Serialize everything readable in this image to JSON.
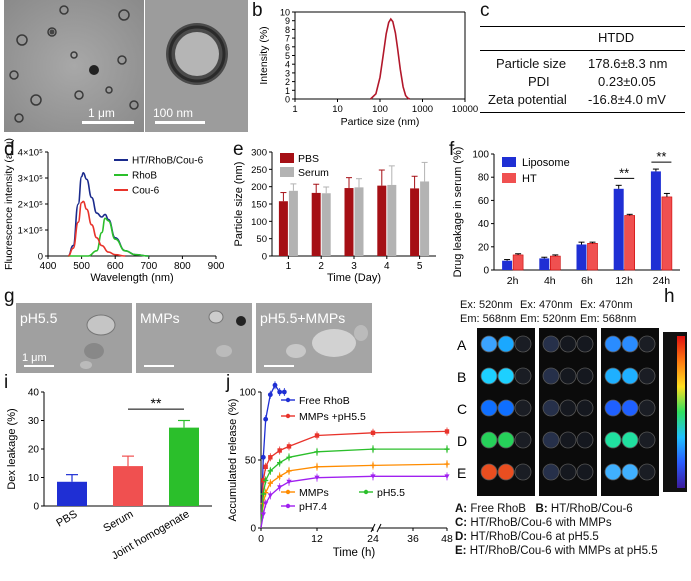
{
  "figure": {
    "labels": {
      "a": "a",
      "b": "b",
      "c": "c",
      "d": "d",
      "e": "e",
      "f": "f",
      "g": "g",
      "h": "h",
      "i": "i",
      "j": "j"
    }
  },
  "panel_a": {
    "scale_left": "1 μm",
    "scale_right": "100 nm"
  },
  "panel_c": {
    "header": "HTDD",
    "rows": [
      {
        "name": "Particle size",
        "value": "178.6±8.3 nm"
      },
      {
        "name": "PDI",
        "value": "0.23±0.05"
      },
      {
        "name": "Zeta potential",
        "value": "-16.8±4.0 mV"
      }
    ]
  },
  "panel_g": {
    "images": [
      "pH5.5",
      "MMPs",
      "pH5.5+MMPs"
    ],
    "scale": "1 μm"
  },
  "panel_h": {
    "columns": [
      {
        "ex": "Ex: 520nm",
        "em": "Em: 568nm"
      },
      {
        "ex": "Ex: 470nm",
        "em": "Em: 520nm"
      },
      {
        "ex": "Ex: 470nm",
        "em": "Em: 568nm"
      }
    ],
    "rows": [
      "A",
      "B",
      "C",
      "D",
      "E"
    ],
    "legend": [
      {
        "k": "A:",
        "v": "Free RhoB"
      },
      {
        "k": "B:",
        "v": "HT/RhoB/Cou-6"
      },
      {
        "k": "C:",
        "v": "HT/RhoB/Cou-6 with MMPs"
      },
      {
        "k": "D:",
        "v": "HT/RhoB/Cou-6 at pH5.5"
      },
      {
        "k": "E:",
        "v": "HT/RhoB/Cou-6 with MMPs at pH5.5"
      }
    ]
  },
  "chart_data": [
    {
      "id": "b",
      "type": "line",
      "xlabel": "Partice size (nm)",
      "ylabel": "Intensity (%)",
      "xscale": "log",
      "xlim": [
        1,
        10000
      ],
      "ylim": [
        0,
        10
      ],
      "xticks": [
        "1",
        "10",
        "100",
        "1000",
        "10000"
      ],
      "yticks": [
        "0",
        "1",
        "2",
        "3",
        "4",
        "5",
        "6",
        "7",
        "8",
        "9",
        "10"
      ],
      "x": [
        60,
        80,
        100,
        120,
        140,
        160,
        180,
        200,
        230,
        260,
        300,
        350,
        400,
        450,
        500
      ],
      "y": [
        0,
        0.6,
        2.5,
        5.2,
        7.5,
        8.8,
        9.2,
        8.9,
        7.6,
        5.8,
        3.4,
        1.4,
        0.4,
        0.1,
        0
      ],
      "color": "#b2182b"
    },
    {
      "id": "d",
      "type": "line",
      "xlabel": "Wavelength (nm)",
      "ylabel": "Fluorescence intensity (a. u)",
      "xlim": [
        400,
        900
      ],
      "ylim": [
        0,
        400000
      ],
      "xticks": [
        "400",
        "500",
        "600",
        "700",
        "800",
        "900"
      ],
      "yticks": [
        "0",
        "1×10⁵",
        "2×10⁵",
        "3×10⁵",
        "4×10⁵"
      ],
      "series": [
        {
          "name": "HT/RhoB/Cou-6",
          "color": "#1a2a8c",
          "x": [
            460,
            475,
            490,
            500,
            505,
            515,
            530,
            545,
            560,
            570,
            580,
            600,
            630,
            660,
            700
          ],
          "y": [
            0,
            40000,
            200000,
            305000,
            320000,
            295000,
            225000,
            165000,
            150000,
            160000,
            140000,
            70000,
            20000,
            5000,
            0
          ]
        },
        {
          "name": "RhoB",
          "color": "#2bbf2b",
          "x": [
            460,
            520,
            545,
            560,
            570,
            580,
            600,
            630,
            660,
            700
          ],
          "y": [
            0,
            0,
            20000,
            90000,
            145000,
            135000,
            65000,
            20000,
            5000,
            0
          ]
        },
        {
          "name": "Cou-6",
          "color": "#e8332b",
          "x": [
            460,
            475,
            490,
            500,
            505,
            515,
            530,
            545,
            560,
            580,
            600,
            630
          ],
          "y": [
            0,
            30000,
            130000,
            205000,
            210000,
            180000,
            120000,
            70000,
            40000,
            15000,
            5000,
            0
          ]
        }
      ]
    },
    {
      "id": "e",
      "type": "bar",
      "xlabel": "Time (Day)",
      "ylabel": "Particle size (nm)",
      "categories": [
        "1",
        "2",
        "3",
        "4",
        "5"
      ],
      "ylim": [
        0,
        300
      ],
      "yticks": [
        "0",
        "50",
        "100",
        "150",
        "200",
        "250",
        "300"
      ],
      "series": [
        {
          "name": "PBS",
          "color": "#a50f15",
          "values": [
            158,
            182,
            196,
            203,
            195
          ],
          "errors": [
            25,
            25,
            30,
            45,
            35
          ]
        },
        {
          "name": "Serum",
          "color": "#b3b3b3",
          "values": [
            188,
            181,
            198,
            205,
            215
          ],
          "errors": [
            20,
            18,
            25,
            55,
            55
          ]
        }
      ]
    },
    {
      "id": "f",
      "type": "bar",
      "xlabel": "",
      "ylabel": "Drug leakage in serum (%)",
      "categories": [
        "2h",
        "4h",
        "6h",
        "12h",
        "24h"
      ],
      "ylim": [
        0,
        100
      ],
      "yticks": [
        "0",
        "20",
        "40",
        "60",
        "80",
        "100"
      ],
      "series": [
        {
          "name": "Liposome",
          "color": "#1f2fd4",
          "values": [
            8,
            10,
            22,
            70,
            85
          ],
          "errors": [
            1,
            1,
            2,
            3,
            2
          ]
        },
        {
          "name": "HT",
          "color": "#f05050",
          "values": [
            13,
            12,
            23,
            47,
            63
          ],
          "errors": [
            1,
            1,
            1,
            1,
            3
          ]
        }
      ],
      "annotations": [
        {
          "at": "12h",
          "text": "**"
        },
        {
          "at": "24h",
          "text": "**"
        }
      ]
    },
    {
      "id": "i",
      "type": "bar",
      "xlabel": "",
      "ylabel": "Dex leakage (%)",
      "categories": [
        "PBS",
        "Serum",
        "Joint homogenate"
      ],
      "ylim": [
        0,
        40
      ],
      "yticks": [
        "0",
        "10",
        "20",
        "30",
        "40"
      ],
      "values": [
        8.5,
        14,
        27.5
      ],
      "errors": [
        2.5,
        3.5,
        2.5
      ],
      "colors": [
        "#1f2fd4",
        "#f05050",
        "#2bbf2b"
      ],
      "annotations": [
        {
          "between": [
            "Serum",
            "Joint homogenate"
          ],
          "text": "**"
        }
      ]
    },
    {
      "id": "j",
      "type": "line",
      "xlabel": "Time (h)",
      "ylabel": "Accumulated release (%)",
      "xlim": [
        0,
        48
      ],
      "ylim": [
        0,
        100
      ],
      "xticks": [
        "0",
        "12",
        "24",
        "36",
        "48"
      ],
      "yticks": [
        "0",
        "50",
        "100"
      ],
      "series": [
        {
          "name": "Free RhoB",
          "color": "#1f2fd4",
          "x": [
            0,
            0.5,
            1,
            2,
            3,
            4,
            5
          ],
          "y": [
            0,
            52,
            80,
            98,
            105,
            100,
            100
          ]
        },
        {
          "name": "MMPs +pH5.5",
          "color": "#e8332b",
          "x": [
            0,
            0.5,
            1,
            2,
            4,
            6,
            12,
            24,
            48
          ],
          "y": [
            0,
            35,
            45,
            52,
            57,
            60,
            68,
            70,
            71
          ]
        },
        {
          "name": "MMPs",
          "color": "#ff8c00",
          "x": [
            0,
            0.5,
            1,
            2,
            4,
            6,
            12,
            24,
            48
          ],
          "y": [
            0,
            18,
            26,
            33,
            38,
            42,
            45,
            46,
            47
          ]
        },
        {
          "name": "pH5.5",
          "color": "#2bbf2b",
          "x": [
            0,
            0.5,
            1,
            2,
            4,
            6,
            12,
            24,
            48
          ],
          "y": [
            0,
            25,
            35,
            42,
            48,
            52,
            56,
            58,
            58
          ]
        },
        {
          "name": "pH7.4",
          "color": "#a020f0",
          "x": [
            0,
            0.5,
            1,
            2,
            4,
            6,
            12,
            24,
            48
          ],
          "y": [
            0,
            10,
            18,
            24,
            30,
            34,
            37,
            38,
            38
          ]
        }
      ]
    }
  ]
}
